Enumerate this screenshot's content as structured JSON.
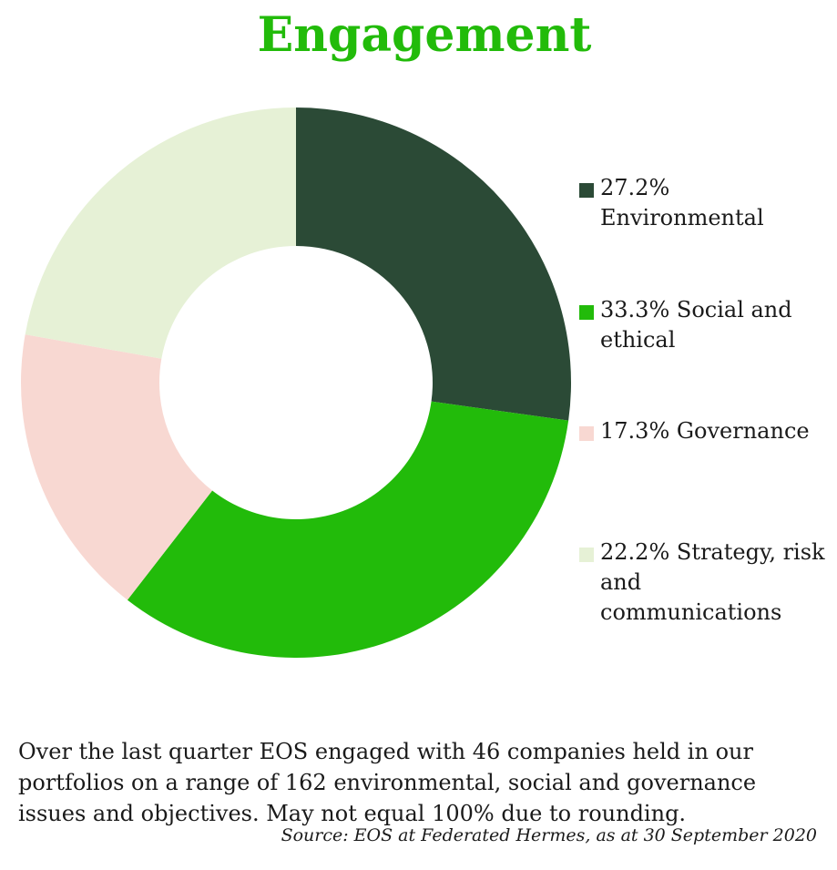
{
  "chart_data": {
    "type": "pie",
    "title": "Engagement",
    "donut": true,
    "slices": [
      {
        "label": "Environmental",
        "value": 27.2,
        "display": "27.2% Environmental",
        "color": "#2b4a36"
      },
      {
        "label": "Social and ethical",
        "value": 33.3,
        "display": "33.3% Social and ethical",
        "color": "#22bb0a"
      },
      {
        "label": "Governance",
        "value": 17.3,
        "display": "17.3% Governance",
        "color": "#f8d8d2"
      },
      {
        "label": "Strategy, risk and communications",
        "value": 22.2,
        "display": "22.2% Strategy, risk and communications",
        "color": "#e6f1d6"
      }
    ],
    "legend_position": "right"
  },
  "note": "Over the last quarter EOS engaged with 46 companies held in our portfolios on a range of 162 environmental, social and governance issues and objectives. May not equal 100% due to rounding.",
  "source": "Source: EOS at Federated Hermes, as at 30 September 2020"
}
